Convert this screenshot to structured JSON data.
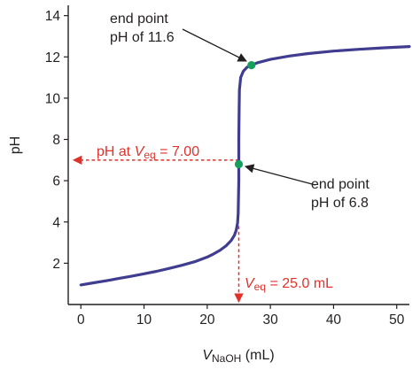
{
  "chart_data": {
    "type": "line",
    "title": "",
    "xlabel": {
      "main": "V",
      "sub": "NaOH",
      "unit": " (mL)"
    },
    "ylabel": "pH",
    "xlim": [
      -2,
      52
    ],
    "ylim": [
      0,
      14.5
    ],
    "x_ticks": [
      0,
      10,
      20,
      30,
      40,
      50
    ],
    "y_ticks": [
      2,
      4,
      6,
      8,
      10,
      12,
      14
    ],
    "grid": false,
    "series": [
      {
        "color": "#403c8f",
        "points": [
          [
            0,
            0.95
          ],
          [
            2,
            1.05
          ],
          [
            4,
            1.15
          ],
          [
            6,
            1.26
          ],
          [
            8,
            1.37
          ],
          [
            10,
            1.49
          ],
          [
            12,
            1.61
          ],
          [
            14,
            1.75
          ],
          [
            16,
            1.9
          ],
          [
            18,
            2.07
          ],
          [
            20,
            2.3
          ],
          [
            21,
            2.45
          ],
          [
            22,
            2.62
          ],
          [
            23,
            2.85
          ],
          [
            23.8,
            3.1
          ],
          [
            24.3,
            3.35
          ],
          [
            24.6,
            3.6
          ],
          [
            24.8,
            3.95
          ],
          [
            24.9,
            4.4
          ],
          [
            25.0,
            6.0
          ],
          [
            25.0,
            7.0
          ],
          [
            25.0,
            8.0
          ],
          [
            25.05,
            9.5
          ],
          [
            25.1,
            10.4
          ],
          [
            25.3,
            11.0
          ],
          [
            25.7,
            11.3
          ],
          [
            26.3,
            11.5
          ],
          [
            27.0,
            11.6
          ],
          [
            28,
            11.72
          ],
          [
            30,
            11.88
          ],
          [
            33,
            12.04
          ],
          [
            36,
            12.16
          ],
          [
            40,
            12.28
          ],
          [
            44,
            12.37
          ],
          [
            48,
            12.44
          ],
          [
            52,
            12.5
          ]
        ]
      }
    ],
    "markers": [
      {
        "name": "end-point-upper",
        "x": 27.0,
        "y": 11.6,
        "color": "#14a05a"
      },
      {
        "name": "end-point-lower",
        "x": 25.0,
        "y": 6.8,
        "color": "#14a05a"
      }
    ],
    "guides": {
      "ph_at_veq": {
        "x_from": 25.0,
        "y": 7.0,
        "x_to": -2,
        "color": "#e0312b"
      },
      "veq": {
        "x": 25.0,
        "y_from": 3.8,
        "y_to": 0,
        "color": "#e0312b"
      }
    },
    "annotations": {
      "upper": {
        "line1": "end point",
        "line2": "pH of 11.6"
      },
      "lower": {
        "line1": "end point",
        "line2": "pH of 6.8"
      },
      "ph_at_veq": {
        "prefix": "pH at ",
        "v": "V",
        "sub": "eq",
        "suffix": " = 7.00"
      },
      "veq": {
        "v": "V",
        "sub": "eq",
        "suffix": " = 25.0 mL"
      }
    }
  }
}
